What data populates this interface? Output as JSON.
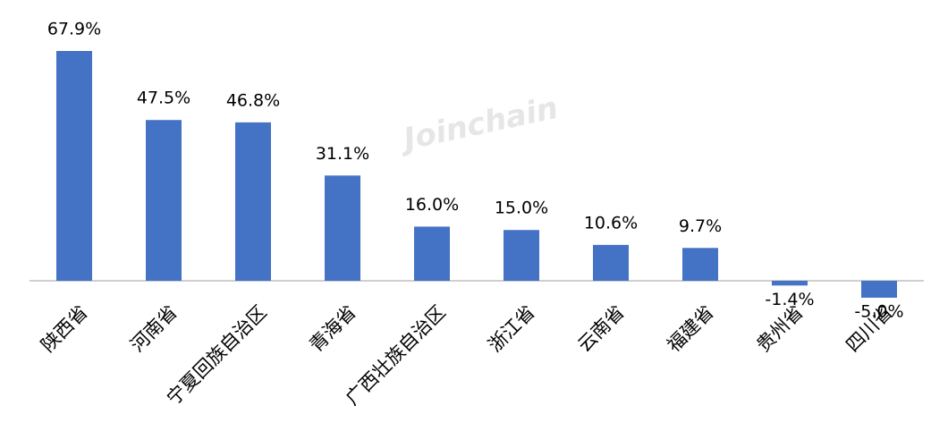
{
  "watermark": "Joinchain",
  "chart_data": {
    "type": "bar",
    "categories": [
      "陕西省",
      "河南省",
      "宁夏回族自治区",
      "青海省",
      "广西壮族自治区",
      "浙江省",
      "云南省",
      "福建省",
      "贵州省",
      "四川省"
    ],
    "values": [
      67.9,
      47.5,
      46.8,
      31.1,
      16.0,
      15.0,
      10.6,
      9.7,
      -1.4,
      -5.0
    ],
    "value_labels": [
      "67.9%",
      "47.5%",
      "46.8%",
      "31.1%",
      "16.0%",
      "15.0%",
      "10.6%",
      "9.7%",
      "-1.4%",
      "-5.0%"
    ],
    "color": "#4472c4"
  }
}
